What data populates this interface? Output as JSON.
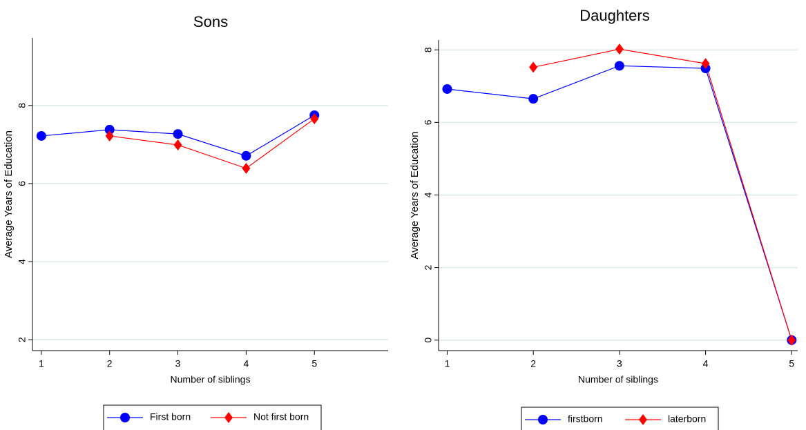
{
  "chart_data": [
    {
      "type": "line",
      "title": "Sons",
      "xlabel": "Number of siblings",
      "ylabel": "Average Years of Education",
      "x": [
        1,
        2,
        3,
        4,
        5
      ],
      "xlim": [
        0.87,
        6.08
      ],
      "xticks": [
        1,
        2,
        3,
        4,
        5
      ],
      "ylim": [
        1.72,
        9.73
      ],
      "yticks": [
        2,
        4,
        6,
        8
      ],
      "grid": true,
      "series": [
        {
          "name": "First born",
          "color": "#0000ff",
          "marker": "circle",
          "values": [
            7.22,
            7.38,
            7.27,
            6.71,
            7.75
          ]
        },
        {
          "name": "Not first born",
          "color": "#ff0000",
          "marker": "diamond",
          "values": [
            null,
            7.22,
            6.99,
            6.39,
            7.66
          ]
        }
      ]
    },
    {
      "type": "line",
      "title": "Daughters",
      "xlabel": "Number of siblings",
      "ylabel": "Average Years of Education",
      "x": [
        1,
        2,
        3,
        4,
        5
      ],
      "xlim": [
        0.9,
        5.07
      ],
      "xticks": [
        1,
        2,
        3,
        4,
        5
      ],
      "ylim": [
        -0.29,
        8.27
      ],
      "yticks": [
        0,
        2,
        4,
        6,
        8
      ],
      "grid": true,
      "series": [
        {
          "name": "firstborn",
          "color": "#0000ff",
          "marker": "circle",
          "values": [
            6.92,
            6.65,
            7.56,
            7.49,
            0
          ]
        },
        {
          "name": "laterborn",
          "color": "#ff0000",
          "marker": "diamond",
          "values": [
            null,
            7.52,
            8.02,
            7.62,
            0
          ]
        }
      ]
    }
  ]
}
